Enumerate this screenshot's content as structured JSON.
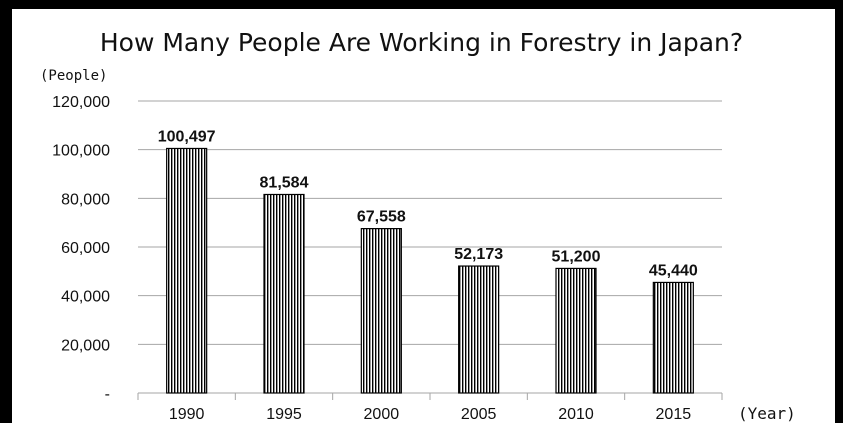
{
  "chart_data": {
    "type": "bar",
    "title": "How Many People Are Working in Forestry in Japan?",
    "ylabel": "(People)",
    "xlabel": "(Year)",
    "categories": [
      "1990",
      "1995",
      "2000",
      "2005",
      "2010",
      "2015"
    ],
    "values": [
      100497,
      81584,
      67558,
      52173,
      51200,
      45440
    ],
    "data_labels": [
      "100,497",
      "81,584",
      "67,558",
      "52,173",
      "51,200",
      "45,440"
    ],
    "ylim": [
      0,
      120000
    ],
    "yticks": [
      0,
      20000,
      40000,
      60000,
      80000,
      100000,
      120000
    ],
    "ytick_labels": [
      "-",
      "20,000",
      "40,000",
      "60,000",
      "80,000",
      "100,000",
      "120,000"
    ],
    "grid": true,
    "bar_pattern": "vertical-hatch",
    "colors": {
      "bar_stroke": "#000000",
      "bar_fill": "#ffffff",
      "grid": "#a6a6a6",
      "frame": "#000000"
    }
  }
}
